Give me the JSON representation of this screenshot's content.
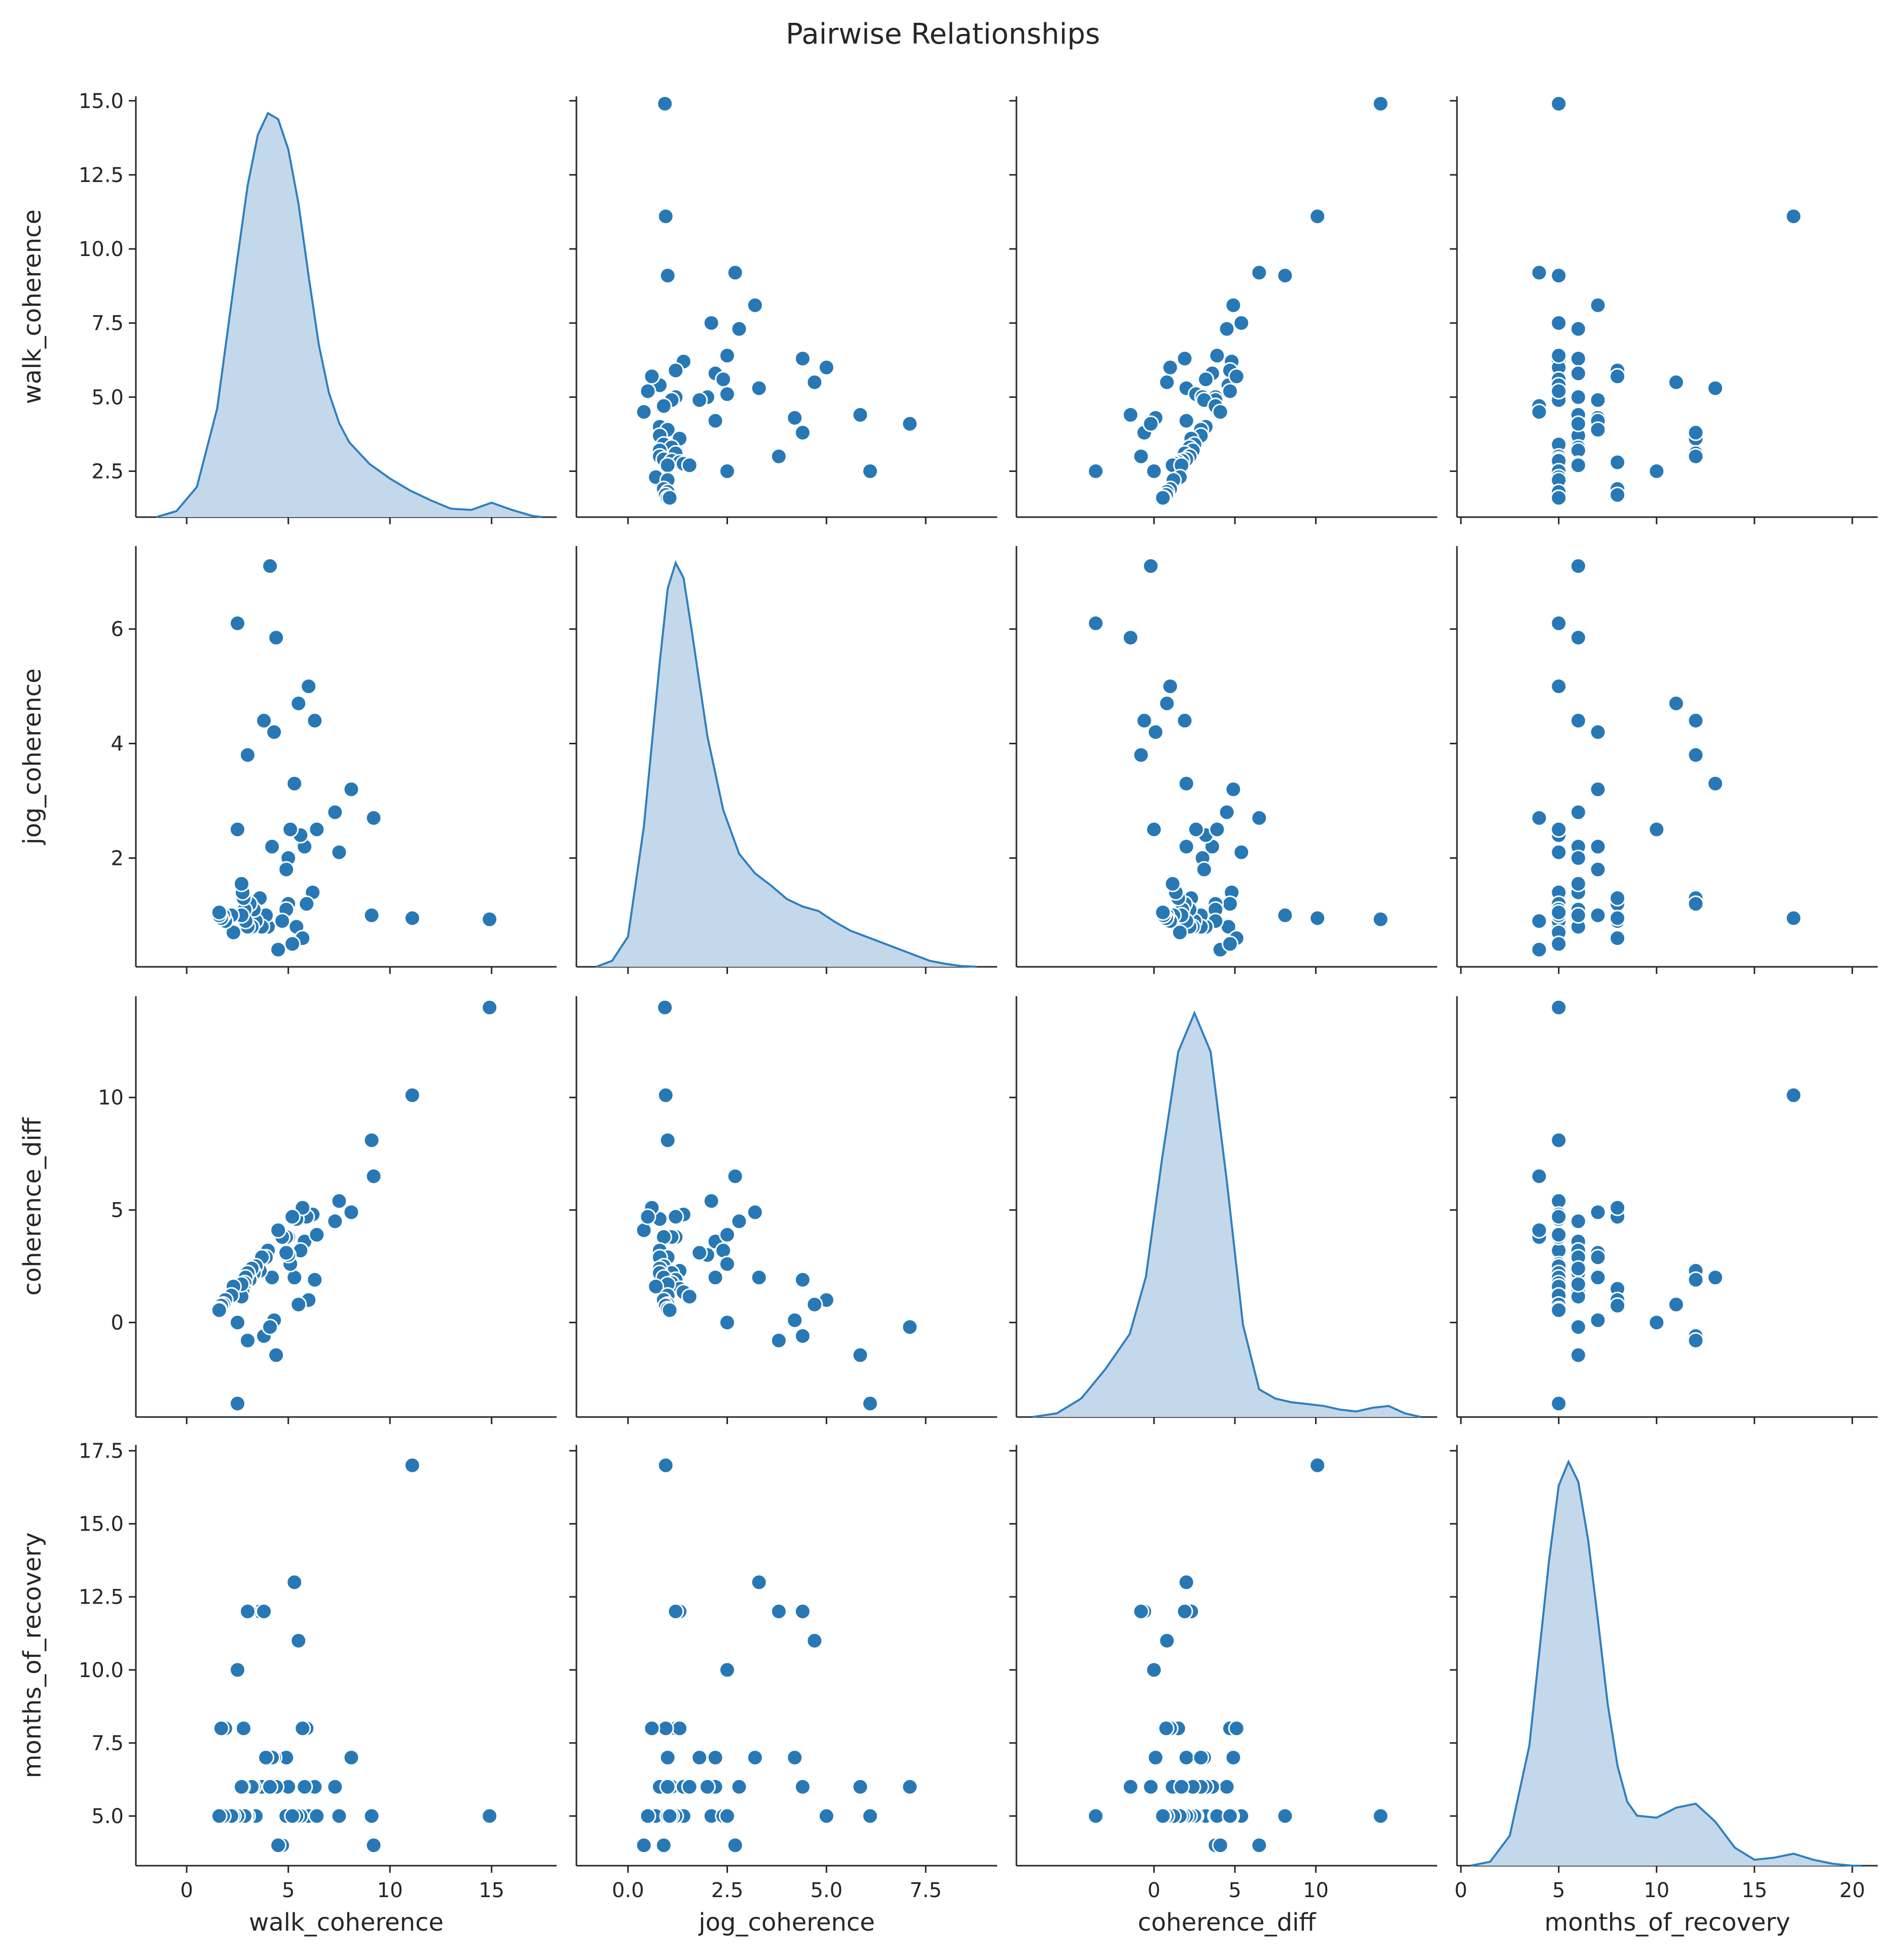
{
  "chart_data": {
    "type": "pairplot",
    "title": "Pairwise Relationships",
    "variables": [
      "walk_coherence",
      "jog_coherence",
      "coherence_diff",
      "months_of_recovery"
    ],
    "axes": {
      "walk_coherence": {
        "range": [
          -2.5,
          18.2
        ],
        "ticks": [
          0,
          5,
          10,
          15
        ],
        "tick_labels": [
          "0",
          "5",
          "10",
          "15"
        ],
        "y_range": [
          0.95,
          15.15
        ],
        "y_ticks": [
          2.5,
          5.0,
          7.5,
          10.0,
          12.5,
          15.0
        ],
        "y_tick_labels": [
          "2.5",
          "5.0",
          "7.5",
          "10.0",
          "12.5",
          "15.0"
        ]
      },
      "jog_coherence": {
        "range": [
          -1.3,
          9.3
        ],
        "ticks": [
          0,
          2.5,
          5,
          7.5
        ],
        "tick_labels": [
          "0.0",
          "2.5",
          "5.0",
          "7.5"
        ],
        "y_range": [
          0.1,
          7.45
        ],
        "y_ticks": [
          2,
          4,
          6
        ],
        "y_tick_labels": [
          "2",
          "4",
          "6"
        ]
      },
      "coherence_diff": {
        "range": [
          -8.5,
          17.5
        ],
        "ticks": [
          0,
          5,
          10
        ],
        "tick_labels": [
          "0",
          "5",
          "10"
        ],
        "y_range": [
          -4.2,
          14.5
        ],
        "y_ticks": [
          0,
          5,
          10
        ],
        "y_tick_labels": [
          "0",
          "5",
          "10"
        ]
      },
      "months_of_recovery": {
        "range": [
          -0.2,
          21.3
        ],
        "ticks": [
          0,
          5,
          10,
          15,
          20
        ],
        "tick_labels": [
          "0",
          "5",
          "10",
          "15",
          "20"
        ],
        "y_range": [
          3.3,
          17.7
        ],
        "y_ticks": [
          5.0,
          7.5,
          10.0,
          12.5,
          15.0,
          17.5
        ],
        "y_tick_labels": [
          "5.0",
          "7.5",
          "10.0",
          "12.5",
          "15.0",
          "17.5"
        ]
      }
    },
    "points": {
      "walk_coherence": [
        14.9,
        11.1,
        9.1,
        9.2,
        8.1,
        7.5,
        7.3,
        6.3,
        6.2,
        6.0,
        5.9,
        5.8,
        5.6,
        5.5,
        5.4,
        5.3,
        5.1,
        5.0,
        5.0,
        4.9,
        4.9,
        4.7,
        4.5,
        4.3,
        4.2,
        4.0,
        3.9,
        3.7,
        3.6,
        3.4,
        3.3,
        3.2,
        3.1,
        3.0,
        2.9,
        2.85,
        2.8,
        2.75,
        2.7,
        2.7,
        2.5,
        2.3,
        2.2,
        1.9,
        1.8,
        1.7,
        1.6,
        1.6,
        5.7,
        4.4,
        3.8,
        6.4,
        5.2,
        2.5,
        3.0,
        4.1
      ],
      "jog_coherence": [
        0.93,
        0.95,
        1.0,
        2.7,
        3.2,
        2.1,
        2.8,
        4.4,
        1.4,
        5.0,
        1.2,
        2.2,
        2.4,
        4.7,
        0.8,
        3.3,
        2.5,
        2.0,
        1.2,
        1.1,
        1.8,
        0.9,
        0.4,
        4.2,
        2.2,
        0.8,
        1.0,
        0.8,
        1.3,
        0.9,
        1.1,
        0.8,
        1.2,
        0.8,
        0.9,
        1.1,
        1.3,
        1.4,
        1.55,
        1.0,
        6.1,
        0.7,
        1.0,
        0.9,
        1.0,
        0.95,
        1.0,
        1.05,
        0.6,
        5.85,
        4.4,
        2.5,
        0.5,
        2.5,
        3.8,
        7.1
      ],
      "coherence_diff": [
        14.0,
        10.1,
        8.1,
        6.5,
        4.9,
        5.4,
        4.5,
        1.9,
        4.8,
        1.0,
        4.7,
        3.6,
        3.2,
        0.8,
        4.6,
        2.0,
        2.6,
        3.0,
        3.8,
        3.8,
        3.1,
        3.8,
        4.1,
        0.1,
        2.0,
        3.2,
        2.9,
        2.9,
        2.3,
        2.5,
        2.2,
        2.4,
        1.9,
        2.2,
        2.0,
        1.75,
        1.5,
        1.35,
        1.15,
        1.7,
        -3.6,
        1.6,
        1.2,
        1.0,
        0.8,
        0.75,
        0.6,
        0.55,
        5.1,
        -1.45,
        -0.6,
        3.9,
        4.7,
        0.0,
        -0.8,
        -0.2
      ],
      "months_of_recovery": [
        5,
        17,
        5,
        4,
        7,
        5,
        6,
        6,
        5,
        5,
        8,
        6,
        5,
        11,
        5,
        13,
        5,
        6,
        5,
        5,
        7,
        4,
        4,
        7,
        7,
        6,
        7,
        6,
        12,
        5,
        6,
        6,
        12,
        5,
        5,
        5,
        8,
        6,
        6,
        6,
        5,
        5,
        5,
        8,
        5,
        8,
        5,
        5,
        8,
        6,
        12,
        5,
        5,
        10,
        12,
        6
      ]
    },
    "kde": {
      "walk_coherence": {
        "x": [
          -1.5,
          -0.5,
          0.5,
          1.5,
          2.5,
          3.0,
          3.5,
          4.0,
          4.5,
          5.0,
          5.5,
          6.0,
          6.5,
          7.0,
          7.5,
          8.0,
          9.0,
          10.0,
          11.0,
          12.0,
          13.0,
          14.0,
          15.0,
          16.0,
          17.0,
          17.5
        ],
        "density": [
          0.0,
          0.005,
          0.025,
          0.09,
          0.215,
          0.275,
          0.317,
          0.335,
          0.33,
          0.305,
          0.26,
          0.2,
          0.143,
          0.103,
          0.078,
          0.062,
          0.044,
          0.032,
          0.022,
          0.014,
          0.007,
          0.006,
          0.012,
          0.006,
          0.001,
          0.0
        ]
      },
      "jog_coherence": {
        "x": [
          -0.8,
          -0.4,
          0.0,
          0.4,
          0.8,
          1.0,
          1.2,
          1.4,
          1.6,
          2.0,
          2.4,
          2.8,
          3.2,
          3.6,
          4.0,
          4.4,
          4.8,
          5.2,
          5.6,
          6.0,
          6.4,
          6.8,
          7.2,
          7.6,
          8.0,
          8.4,
          8.8
        ],
        "density": [
          0.0,
          0.004,
          0.02,
          0.093,
          0.202,
          0.251,
          0.268,
          0.258,
          0.224,
          0.153,
          0.104,
          0.075,
          0.062,
          0.054,
          0.045,
          0.04,
          0.037,
          0.03,
          0.024,
          0.02,
          0.016,
          0.012,
          0.008,
          0.004,
          0.002,
          0.0005,
          0.0
        ]
      },
      "coherence_diff": {
        "x": [
          -7.5,
          -6.0,
          -4.5,
          -3.0,
          -1.5,
          -0.5,
          0.5,
          1.5,
          2.5,
          3.5,
          4.5,
          5.5,
          6.5,
          7.5,
          8.5,
          9.5,
          10.5,
          11.5,
          12.5,
          13.5,
          14.5,
          15.5,
          16.5
        ],
        "density": [
          0.0,
          0.002,
          0.01,
          0.026,
          0.045,
          0.076,
          0.14,
          0.198,
          0.219,
          0.198,
          0.128,
          0.05,
          0.015,
          0.01,
          0.008,
          0.007,
          0.006,
          0.004,
          0.003,
          0.005,
          0.006,
          0.002,
          0.0
        ]
      },
      "months_of_recovery": {
        "x": [
          0.5,
          1.5,
          2.5,
          3.5,
          4.5,
          5.0,
          5.5,
          6.0,
          6.5,
          7.0,
          7.5,
          8.0,
          8.5,
          9.0,
          10.0,
          11.0,
          12.0,
          13.0,
          14.0,
          15.0,
          16.0,
          17.0,
          18.0,
          19.0,
          20.0,
          20.5
        ],
        "density": [
          0.0,
          0.002,
          0.015,
          0.06,
          0.152,
          0.19,
          0.202,
          0.192,
          0.163,
          0.123,
          0.081,
          0.05,
          0.032,
          0.025,
          0.024,
          0.029,
          0.031,
          0.022,
          0.009,
          0.003,
          0.004,
          0.006,
          0.003,
          0.001,
          0.0,
          0.0
        ]
      }
    },
    "colors": {
      "marker": "#2878b5",
      "marker_edge": "#ffffff",
      "kde_line": "#2f7fbd",
      "kde_fill": "#c4d8ec",
      "axis": "#262626"
    }
  }
}
